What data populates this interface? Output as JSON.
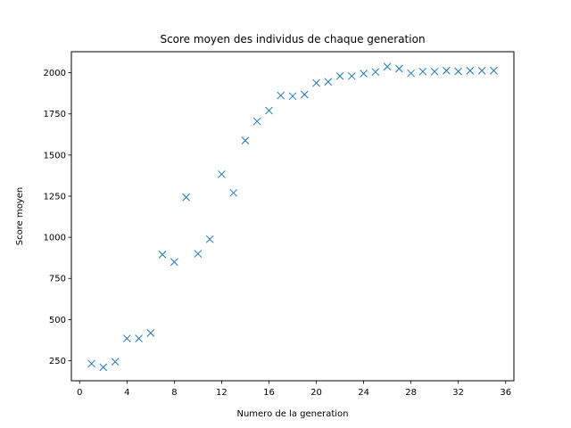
{
  "chart_data": {
    "type": "scatter",
    "title": "Score moyen des individus de chaque generation",
    "xlabel": "Numero de la generation",
    "ylabel": "Score moyen",
    "xlim": [
      -0.7,
      36.7
    ],
    "ylim": [
      128,
      2128
    ],
    "xticks": [
      0,
      4,
      8,
      12,
      16,
      20,
      24,
      28,
      32,
      36
    ],
    "yticks": [
      250,
      500,
      750,
      1000,
      1250,
      1500,
      1750,
      2000
    ],
    "marker": "x",
    "color": "#1f77b4",
    "grid": false,
    "series": [
      {
        "x": [
          1,
          2,
          3,
          4,
          5,
          6,
          7,
          8,
          9,
          10,
          11,
          12,
          13,
          14,
          15,
          16,
          17,
          18,
          19,
          20,
          21,
          22,
          23,
          24,
          25,
          26,
          27,
          28,
          29,
          30,
          31,
          32,
          33,
          34,
          35
        ],
        "y": [
          232,
          210,
          243,
          385,
          385,
          418,
          895,
          850,
          1243,
          900,
          988,
          1383,
          1270,
          1588,
          1705,
          1770,
          1862,
          1858,
          1868,
          1938,
          1945,
          1980,
          1980,
          1995,
          2005,
          2037,
          2025,
          1997,
          2007,
          2007,
          2013,
          2008,
          2013,
          2013,
          2013
        ]
      }
    ]
  }
}
